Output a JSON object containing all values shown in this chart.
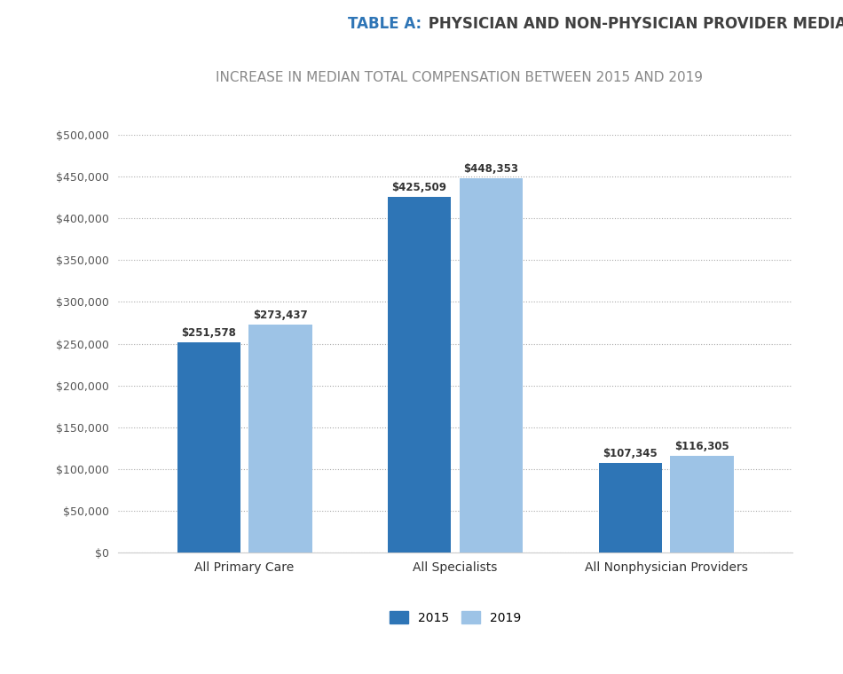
{
  "title_label": "TABLE A:",
  "title_rest": " PHYSICIAN AND NON-PHYSICIAN PROVIDER MEDIAN COMPENSATION",
  "subtitle": "INCREASE IN MEDIAN TOTAL COMPENSATION BETWEEN 2015 AND 2019",
  "categories": [
    "All Primary Care",
    "All Specialists",
    "All Nonphysician Providers"
  ],
  "values_2015": [
    251578,
    425509,
    107345
  ],
  "values_2019": [
    273437,
    448353,
    116305
  ],
  "labels_2015": [
    "$251,578",
    "$425,509",
    "$107,345"
  ],
  "labels_2019": [
    "$273,437",
    "$448,353",
    "$116,305"
  ],
  "color_2015": "#2E75B6",
  "color_2019": "#9DC3E6",
  "ylim": [
    0,
    500000
  ],
  "yticks": [
    0,
    50000,
    100000,
    150000,
    200000,
    250000,
    300000,
    350000,
    400000,
    450000,
    500000
  ],
  "ytick_labels": [
    "$0",
    "$50,000",
    "$100,000",
    "$150,000",
    "$200,000",
    "$250,000",
    "$300,000",
    "$350,000",
    "$400,000",
    "$450,000",
    "$500,000"
  ],
  "legend_2015": "2015",
  "legend_2019": "2019",
  "background_color": "#FFFFFF",
  "chart_bg": "#FFFFFF",
  "title_label_color": "#2E75B6",
  "title_rest_color": "#404040",
  "subtitle_color": "#888888",
  "bar_width": 0.3
}
